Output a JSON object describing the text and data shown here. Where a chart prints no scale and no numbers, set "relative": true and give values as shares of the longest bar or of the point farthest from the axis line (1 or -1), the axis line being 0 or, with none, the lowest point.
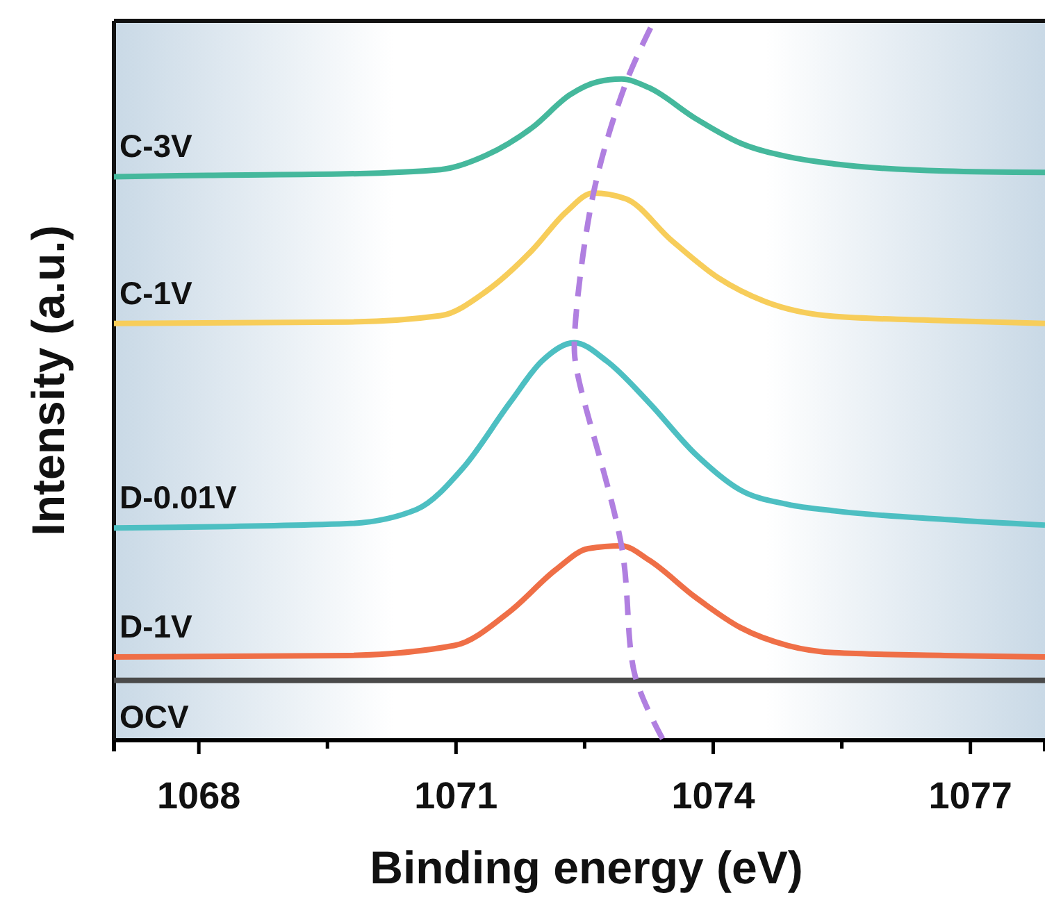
{
  "chart_data": {
    "type": "line",
    "relative": true,
    "xlabel": "Binding energy (eV)",
    "ylabel": "Intensity (a.u.)",
    "xlim": [
      1067.01,
      1077.87
    ],
    "xticks": [
      1068,
      {
        "value": 1069.5,
        "label": null
      },
      1071,
      {
        "value": 1072.5,
        "label": null
      },
      1074,
      {
        "value": 1075.5,
        "label": null
      },
      1077
    ],
    "grid": false,
    "legend": false,
    "marker": "none",
    "line_style": "solid",
    "series": [
      {
        "name": "C-3V",
        "color": "#45b89c",
        "x": [
          1067.01,
          1068.11,
          1069.73,
          1070.82,
          1071.35,
          1071.89,
          1072.33,
          1072.65,
          1072.93,
          1073.25,
          1073.79,
          1074.32,
          1074.87,
          1075.41,
          1076.7,
          1077.87
        ],
        "values": [
          0.791,
          0.793,
          0.795,
          0.801,
          0.821,
          0.86,
          0.906,
          0.924,
          0.928,
          0.916,
          0.873,
          0.838,
          0.819,
          0.809,
          0.799,
          0.797
        ]
      },
      {
        "name": "C-1V",
        "color": "#f7cd5a",
        "x": [
          1067.01,
          1069.73,
          1070.82,
          1071.35,
          1071.89,
          1072.28,
          1072.6,
          1072.98,
          1073.51,
          1074.06,
          1074.6,
          1075.41,
          1076.7,
          1077.87
        ],
        "values": [
          0.585,
          0.587,
          0.596,
          0.63,
          0.688,
          0.741,
          0.768,
          0.76,
          0.702,
          0.649,
          0.616,
          0.595,
          0.589,
          0.585
        ]
      },
      {
        "name": "D-0.01V",
        "color": "#4dbfc2",
        "x": [
          1067.01,
          1069.73,
          1070.54,
          1071.08,
          1071.63,
          1072.0,
          1072.38,
          1072.76,
          1073.25,
          1073.79,
          1074.32,
          1074.87,
          1075.41,
          1076.7,
          1077.87
        ],
        "values": [
          0.298,
          0.304,
          0.324,
          0.382,
          0.474,
          0.532,
          0.558,
          0.532,
          0.474,
          0.402,
          0.351,
          0.331,
          0.322,
          0.31,
          0.302
        ]
      },
      {
        "name": "D-1V",
        "color": "#ef6f47",
        "x": [
          1067.01,
          1069.73,
          1070.98,
          1071.63,
          1072.17,
          1072.54,
          1072.93,
          1073.25,
          1073.79,
          1074.32,
          1074.87,
          1075.41,
          1076.7,
          1077.87
        ],
        "values": [
          0.117,
          0.119,
          0.133,
          0.181,
          0.24,
          0.269,
          0.273,
          0.253,
          0.201,
          0.158,
          0.133,
          0.123,
          0.119,
          0.117
        ]
      },
      {
        "name": "OCV",
        "color": "#4a4a4a",
        "x": [
          1067.01,
          1069.73,
          1072.5,
          1075.41,
          1077.87
        ],
        "values": [
          0.084,
          0.084,
          0.084,
          0.084,
          0.084
        ]
      },
      {
        "color": "#b07fe0",
        "line_style": "dashed",
        "x": [
          1073.27,
          1072.98,
          1072.6,
          1072.38,
          1072.41,
          1072.93,
          1073.09,
          1073.41
        ],
        "values": [
          1,
          0.922,
          0.766,
          0.558,
          0.519,
          0.273,
          0.09,
          0.002
        ]
      }
    ]
  }
}
